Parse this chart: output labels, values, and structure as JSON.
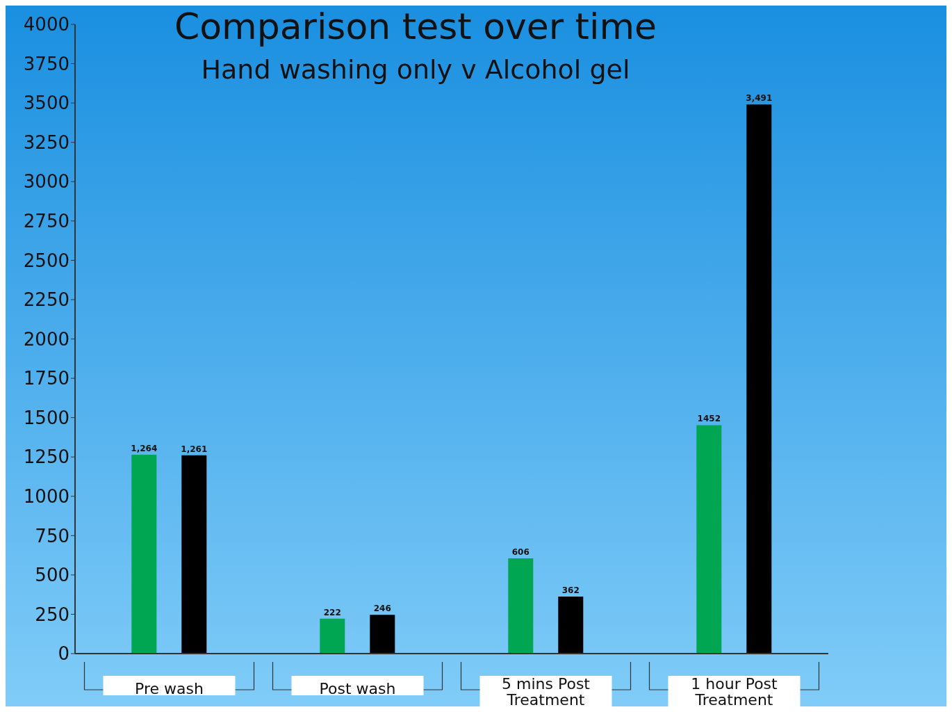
{
  "chart_data": {
    "type": "bar",
    "title": "Comparison test over time",
    "subtitle": "Hand washing only v Alcohol gel",
    "categories": [
      "Pre wash",
      "Post wash",
      "5 mins Post Treatment",
      "1 hour Post Treatment"
    ],
    "series": [
      {
        "color": "#00a651",
        "values": [
          1264,
          222,
          606,
          1452
        ],
        "value_labels": [
          "1,264",
          "222",
          "606",
          "1452"
        ]
      },
      {
        "color": "#000000",
        "values": [
          1261,
          246,
          362,
          3491
        ],
        "value_labels": [
          "1,261",
          "246",
          "362",
          "3,491"
        ]
      }
    ],
    "ylim": [
      0,
      4000
    ],
    "yticks": [
      0,
      250,
      500,
      750,
      1000,
      1250,
      1500,
      1750,
      2000,
      2250,
      2500,
      2750,
      3000,
      3250,
      3500,
      3750,
      4000
    ],
    "grid": false,
    "legend": false
  }
}
